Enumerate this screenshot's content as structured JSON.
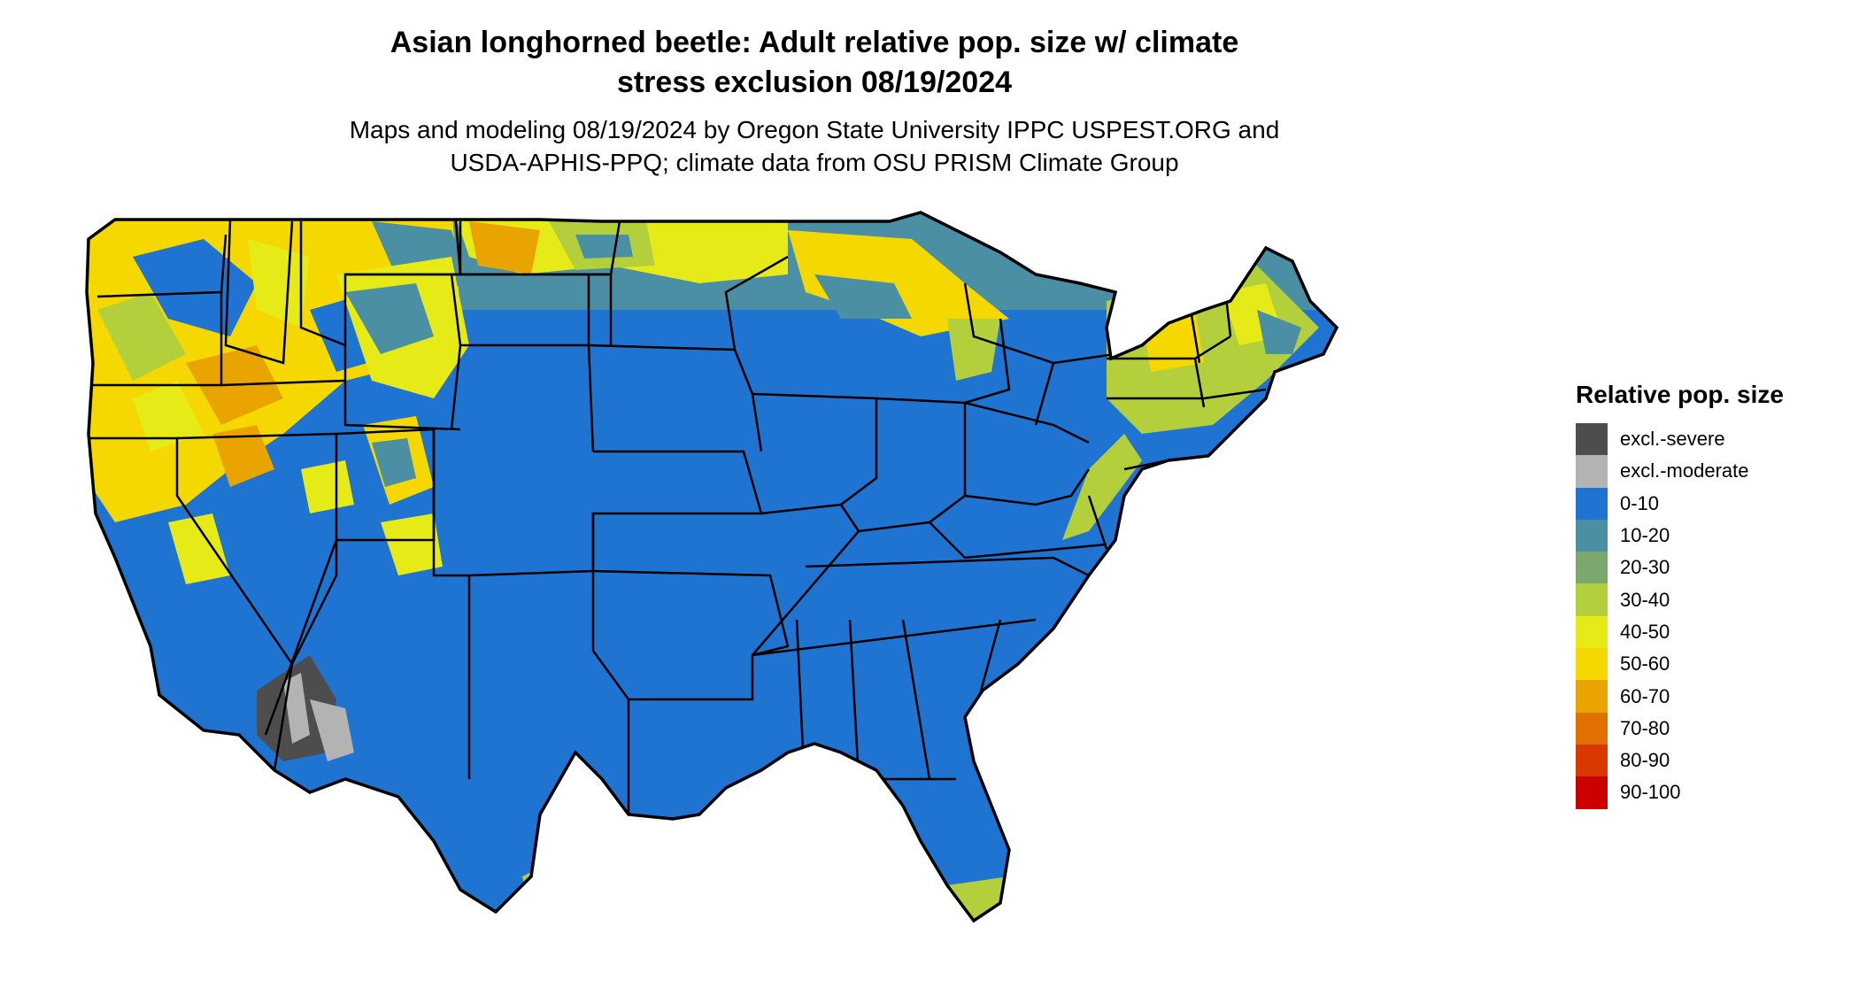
{
  "title": {
    "line1": "Asian longhorned beetle: Adult relative pop. size w/ climate",
    "line2": "stress exclusion 08/19/2024"
  },
  "subtitle": {
    "line1": "Maps and modeling 08/19/2024 by Oregon State University IPPC USPEST.ORG and",
    "line2": "USDA-APHIS-PPQ; climate data from OSU PRISM Climate Group"
  },
  "legend": {
    "title": "Relative pop. size",
    "items": [
      {
        "label": "excl.-severe",
        "color": "#4d4d4d"
      },
      {
        "label": "excl.-moderate",
        "color": "#b3b3b3"
      },
      {
        "label": "0-10",
        "color": "#1f74d1"
      },
      {
        "label": "10-20",
        "color": "#4a8fa3"
      },
      {
        "label": "20-30",
        "color": "#7ba86f"
      },
      {
        "label": "30-40",
        "color": "#b4cf3c"
      },
      {
        "label": "40-50",
        "color": "#e6ea16"
      },
      {
        "label": "50-60",
        "color": "#f5d800"
      },
      {
        "label": "60-70",
        "color": "#eaa400"
      },
      {
        "label": "70-80",
        "color": "#e07000"
      },
      {
        "label": "80-90",
        "color": "#d93800"
      },
      {
        "label": "90-100",
        "color": "#cc0000"
      }
    ]
  },
  "map": {
    "region": "Contiguous United States",
    "base_color": "#1f74d1",
    "outline_color": "#000000"
  }
}
